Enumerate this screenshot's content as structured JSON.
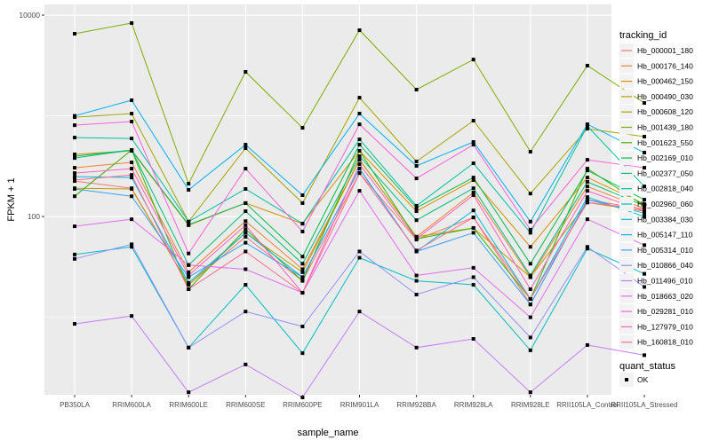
{
  "chart_data": {
    "type": "line",
    "xlabel": "sample_name",
    "ylabel": "FPKM + 1",
    "y_scale": "log10",
    "ylim": [
      1.7,
      12760
    ],
    "y_ticks": [
      {
        "value": 100,
        "label": "100"
      },
      {
        "value": 10000,
        "label": "10000"
      }
    ],
    "y_minor_gridlines": [
      10,
      1000
    ],
    "grid": true,
    "background": "#EBEBEB",
    "categories": [
      "PB350LA",
      "RRIM600LA",
      "RRIM600LE",
      "RRIM600SE",
      "RRIM600PE",
      "RRIM901LA",
      "RRIM928BA",
      "RRIM928LA",
      "RRIM928LE",
      "RRII105LA_Control",
      "RRII105LA_Stressed"
    ],
    "legend": {
      "title": "tracking_id",
      "placement": "right"
    },
    "shape_legend": {
      "title": "quant_status",
      "items": [
        {
          "label": "OK",
          "marker": "square",
          "color": "#000000"
        }
      ]
    },
    "series": [
      {
        "name": "Hb_000001_180",
        "color": "#F8766D",
        "values": [
          225,
          191,
          21,
          63,
          23,
          270,
          59,
          98,
          13.4,
          147,
          118
        ]
      },
      {
        "name": "Hb_000176_140",
        "color": "#EA8331",
        "values": [
          305,
          345,
          28,
          90,
          30,
          366,
          63,
          173,
          25,
          199,
          120
        ]
      },
      {
        "name": "Hb_000462_150",
        "color": "#D89000",
        "values": [
          414,
          449,
          82,
          136,
          85,
          449,
          113,
          230,
          50,
          244,
          133
        ]
      },
      {
        "name": "Hb_000490_030",
        "color": "#C09B00",
        "values": [
          191,
          188,
          21,
          69,
          28,
          366,
          63,
          77,
          25,
          138,
          113
        ]
      },
      {
        "name": "Hb_000608_120",
        "color": "#A3A500",
        "values": [
          970,
          1052,
          89,
          477,
          136,
          1515,
          352,
          895,
          169,
          745,
          621
        ]
      },
      {
        "name": "Hb_001439_180",
        "color": "#7CAE00",
        "values": [
          6530,
          8340,
          212,
          2730,
          760,
          7080,
          1820,
          3620,
          440,
          3150,
          1342
        ]
      },
      {
        "name": "Hb_001623_550",
        "color": "#39B600",
        "values": [
          159,
          458,
          19,
          75,
          23,
          449,
          60,
          77,
          15.2,
          299,
          128
        ]
      },
      {
        "name": "Hb_002169_010",
        "color": "#00BB4E",
        "values": [
          397,
          458,
          83,
          136,
          40,
          517,
          122,
          244,
          34,
          287,
          147
        ]
      },
      {
        "name": "Hb_002377_050",
        "color": "#00BF7D",
        "values": [
          381,
          458,
          33,
          113,
          34,
          397,
          92,
          191,
          26,
          221,
          128
        ]
      },
      {
        "name": "Hb_002818_040",
        "color": "#00C1A3",
        "values": [
          608,
          596,
          89,
          188,
          85,
          584,
          128,
          338,
          69,
          792,
          199
        ]
      },
      {
        "name": "Hb_002960_060",
        "color": "#00BFC4",
        "values": [
          42,
          50,
          5.0,
          21,
          4.4,
          39,
          23,
          21,
          4.7,
          48,
          27
        ]
      },
      {
        "name": "Hb_003384_030",
        "color": "#00BAE0",
        "values": [
          249,
          244,
          22,
          69,
          25,
          299,
          45,
          115,
          15.2,
          156,
          100
        ]
      },
      {
        "name": "Hb_005147_110",
        "color": "#00B0F6",
        "values": [
          1000,
          1427,
          184,
          517,
          163,
          1052,
          318,
          550,
          89,
          824,
          431
        ]
      },
      {
        "name": "Hb_005314_010",
        "color": "#35A2FF",
        "values": [
          188,
          159,
          25,
          55,
          25,
          299,
          45,
          69,
          13.4,
          147,
          108
        ]
      },
      {
        "name": "Hb_010866_040",
        "color": "#9590FF",
        "values": [
          38,
          53,
          5.0,
          11.4,
          8.1,
          45,
          16.8,
          25,
          6.3,
          50,
          20
        ]
      },
      {
        "name": "Hb_011496_010",
        "color": "#C77CFF",
        "values": [
          8.6,
          10.3,
          1.8,
          3.4,
          1.6,
          11.4,
          5.0,
          6.1,
          1.8,
          5.3,
          4.2
        ]
      },
      {
        "name": "Hb_018663_020",
        "color": "#E76BF3",
        "values": [
          80,
          94,
          33,
          30,
          17.5,
          180,
          26,
          31,
          10,
          94,
          52
        ]
      },
      {
        "name": "Hb_029281_010",
        "color": "#FA62DB",
        "values": [
          807,
          877,
          43,
          299,
          71,
          824,
          239,
          517,
          74,
          366,
          305
        ]
      },
      {
        "name": "Hb_127979_010",
        "color": "#FF62BC",
        "values": [
          270,
          299,
          26,
          82,
          17.5,
          331,
          60,
          163,
          19,
          180,
          113
        ]
      },
      {
        "name": "Hb_160818_010",
        "color": "#FF6C91",
        "values": [
          230,
          259,
          19,
          45,
          17.5,
          270,
          46,
          98,
          15.2,
          138,
          118
        ]
      }
    ]
  }
}
